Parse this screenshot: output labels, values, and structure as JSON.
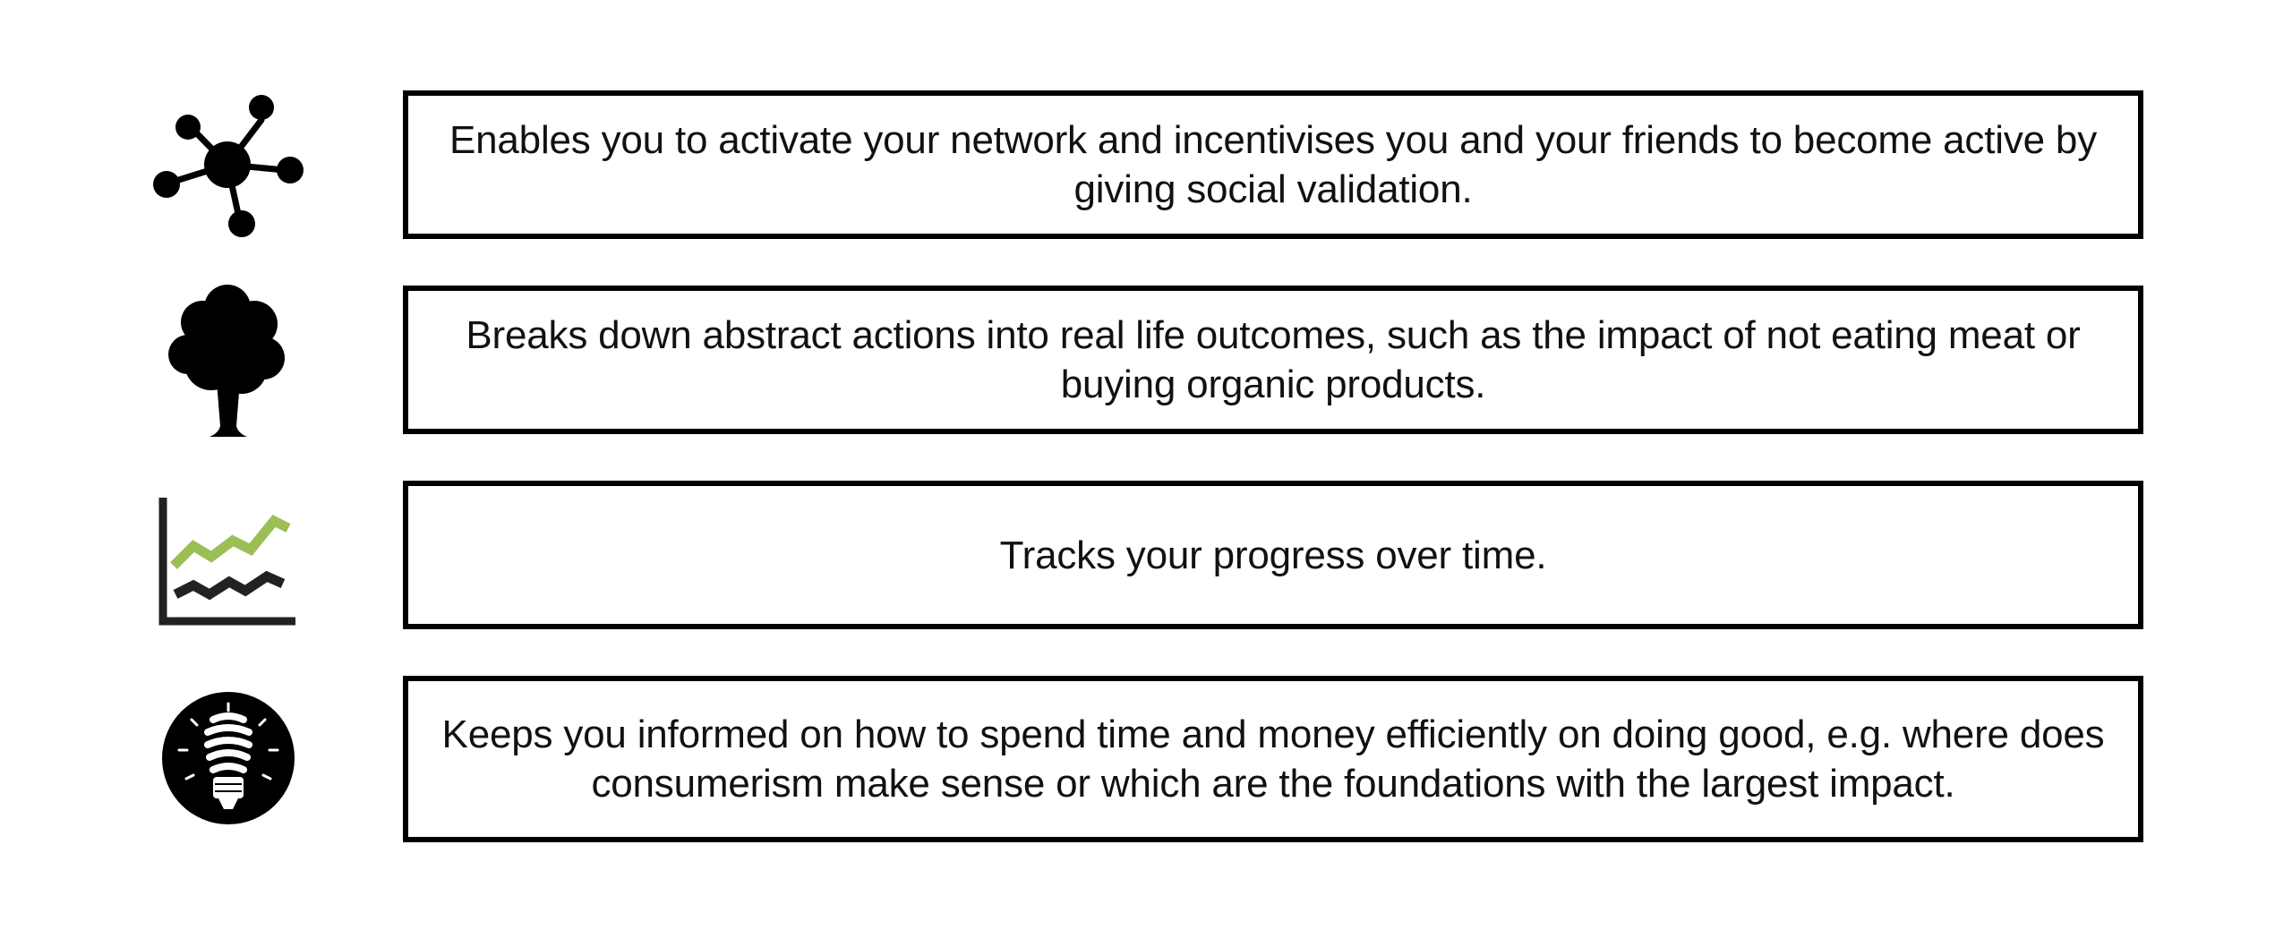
{
  "features": [
    {
      "icon": "network-nodes-icon",
      "text": "Enables you to activate your network and incentivises you and your friends to become active by giving social validation."
    },
    {
      "icon": "tree-icon",
      "text": "Breaks down abstract actions into real life outcomes, such as the impact of not eating meat or buying organic products."
    },
    {
      "icon": "line-chart-icon",
      "text": "Tracks your progress over time."
    },
    {
      "icon": "lightbulb-icon",
      "text": "Keeps you informed on how to spend time and money efficiently on doing good, e.g. where does consumerism make sense or which are the foundations with the largest impact."
    }
  ],
  "colors": {
    "border": "#000000",
    "icon": "#000000",
    "chart_upper_line": "#9bbf55",
    "chart_lower_line": "#222222"
  }
}
